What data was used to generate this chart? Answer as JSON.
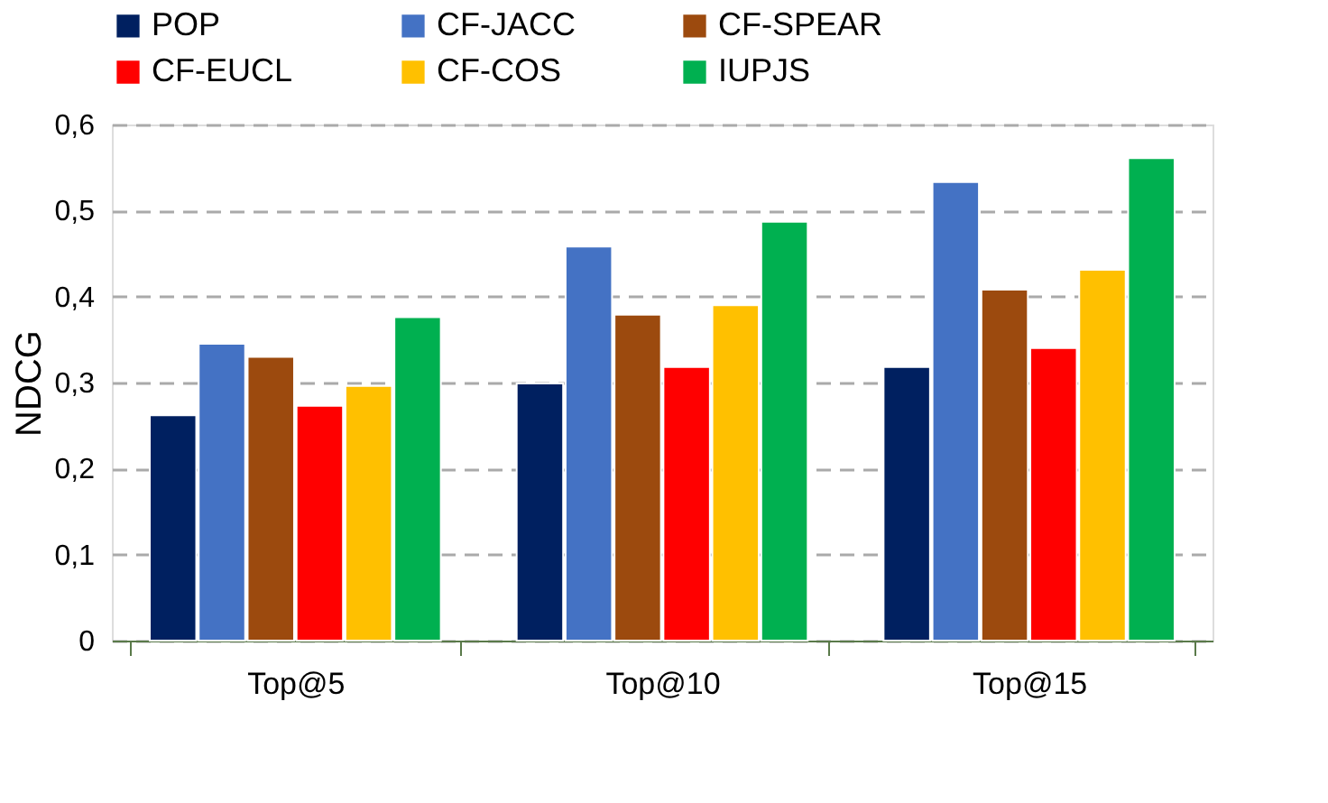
{
  "chart_data": {
    "type": "bar",
    "ylabel": "NDCG",
    "categories": [
      "Top@5",
      "Top@10",
      "Top@15"
    ],
    "series": [
      {
        "name": "POP",
        "color": "#002060",
        "values": [
          0.262,
          0.299,
          0.318
        ]
      },
      {
        "name": "CF-JACC",
        "color": "#4472c4",
        "values": [
          0.345,
          0.458,
          0.533
        ]
      },
      {
        "name": "CF-SPEAR",
        "color": "#9c4a0e",
        "values": [
          0.33,
          0.379,
          0.408
        ]
      },
      {
        "name": "CF-EUCL",
        "color": "#ff0000",
        "values": [
          0.273,
          0.318,
          0.34
        ]
      },
      {
        "name": "CF-COS",
        "color": "#ffc000",
        "values": [
          0.296,
          0.39,
          0.431
        ]
      },
      {
        "name": "IUPJS",
        "color": "#00b050",
        "values": [
          0.376,
          0.487,
          0.561
        ]
      }
    ],
    "ylim": [
      0,
      0.6
    ],
    "yticks": [
      {
        "value": 0,
        "label": "0"
      },
      {
        "value": 0.1,
        "label": "0,1"
      },
      {
        "value": 0.2,
        "label": "0,2"
      },
      {
        "value": 0.3,
        "label": "0,3"
      },
      {
        "value": 0.4,
        "label": "0,4"
      },
      {
        "value": 0.5,
        "label": "0,5"
      },
      {
        "value": 0.6,
        "label": "0,6"
      }
    ],
    "grid": "y",
    "legend": "top"
  }
}
